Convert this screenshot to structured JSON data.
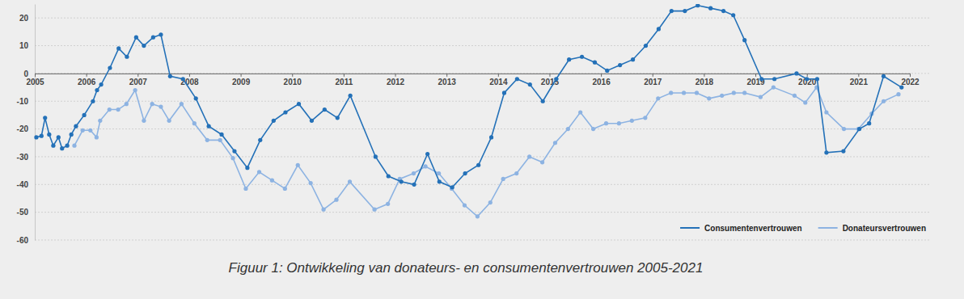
{
  "chart_data": {
    "type": "line",
    "title": "Figuur 1: Ontwikkeling van donateurs- en consumentenvertrouwen 2005-2021",
    "xlim": [
      2005,
      2022
    ],
    "xticks": [
      2005,
      2006,
      2007,
      2008,
      2009,
      2010,
      2011,
      2012,
      2013,
      2014,
      2015,
      2016,
      2017,
      2018,
      2019,
      2020,
      2021,
      2022
    ],
    "ylim": [
      -60,
      25
    ],
    "yticks": [
      20,
      10,
      0,
      -10,
      -20,
      -30,
      -40,
      -50,
      -60
    ],
    "grid": true,
    "legend": "lower right",
    "marker": "circle",
    "series": [
      {
        "name": "Consumentenvertrouwen",
        "color": "#2471b8",
        "x": [
          2005.03,
          2005.13,
          2005.2,
          2005.28,
          2005.36,
          2005.46,
          2005.53,
          2005.63,
          2005.71,
          2005.8,
          2005.96,
          2006.13,
          2006.21,
          2006.29,
          2006.46,
          2006.63,
          2006.79,
          2006.97,
          2007.12,
          2007.3,
          2007.45,
          2007.63,
          2007.88,
          2008.13,
          2008.38,
          2008.63,
          2008.88,
          2009.13,
          2009.38,
          2009.64,
          2009.87,
          2010.13,
          2010.38,
          2010.63,
          2010.88,
          2011.13,
          2011.62,
          2011.87,
          2012.12,
          2012.37,
          2012.63,
          2012.86,
          2013.11,
          2013.36,
          2013.62,
          2013.87,
          2014.12,
          2014.37,
          2014.62,
          2014.87,
          2015.13,
          2015.38,
          2015.63,
          2015.88,
          2016.12,
          2016.37,
          2016.62,
          2016.87,
          2017.12,
          2017.37,
          2017.63,
          2017.88,
          2018.13,
          2018.38,
          2018.57,
          2018.79,
          2019.12,
          2019.37,
          2019.8,
          2020.0,
          2020.2,
          2020.38,
          2020.71,
          2021.02,
          2021.21,
          2021.49,
          2021.84
        ],
        "values": [
          -23,
          -22.5,
          -16,
          -22,
          -26,
          -23,
          -27,
          -26,
          -22,
          -19,
          -15,
          -10,
          -6,
          -4,
          2,
          9,
          6,
          13,
          10,
          13,
          14,
          -1,
          -2,
          -9,
          -19,
          -22,
          -28,
          -34,
          -24,
          -17,
          -14,
          -11,
          -17,
          -13,
          -16,
          -8,
          -30,
          -37,
          -39,
          -40,
          -29,
          -39,
          -41,
          -36,
          -33,
          -23,
          -7,
          -2,
          -4,
          -10,
          -2,
          5,
          6,
          4,
          1,
          3,
          5,
          10,
          16,
          22.5,
          22.5,
          24.5,
          23.5,
          22.5,
          21,
          12,
          -2,
          -2,
          0,
          -2,
          -2,
          -28.5,
          -28,
          -20,
          -18,
          -1,
          -5
        ]
      },
      {
        "name": "Donateursvertrouwen",
        "color": "#8db3e2",
        "x": [
          2005.77,
          2005.93,
          2006.08,
          2006.2,
          2006.27,
          2006.45,
          2006.62,
          2006.78,
          2006.95,
          2007.12,
          2007.28,
          2007.45,
          2007.61,
          2007.85,
          2008.1,
          2008.35,
          2008.6,
          2008.85,
          2009.1,
          2009.36,
          2009.61,
          2009.86,
          2010.11,
          2010.36,
          2010.61,
          2010.86,
          2011.12,
          2011.6,
          2011.86,
          2012.09,
          2012.36,
          2012.59,
          2012.85,
          2013.1,
          2013.35,
          2013.6,
          2013.85,
          2014.1,
          2014.36,
          2014.61,
          2014.86,
          2015.11,
          2015.36,
          2015.6,
          2015.85,
          2016.1,
          2016.35,
          2016.6,
          2016.86,
          2017.11,
          2017.36,
          2017.61,
          2017.86,
          2018.1,
          2018.35,
          2018.58,
          2018.79,
          2019.1,
          2019.35,
          2019.76,
          2019.97,
          2020.19,
          2020.38,
          2020.72,
          2021.0,
          2021.26,
          2021.49,
          2021.78
        ],
        "values": [
          -26,
          -20.5,
          -20.5,
          -23,
          -17,
          -13,
          -13,
          -11,
          -6,
          -17,
          -11,
          -12,
          -17,
          -11,
          -18,
          -24,
          -24,
          -30.5,
          -41.5,
          -35.5,
          -38.5,
          -41.5,
          -33,
          -39.5,
          -49,
          -45.5,
          -39,
          -49,
          -47,
          -38,
          -36,
          -33.5,
          -36,
          -41.5,
          -47.5,
          -51.5,
          -46.5,
          -38,
          -36,
          -30,
          -32,
          -25,
          -20,
          -14,
          -20,
          -18,
          -18,
          -17,
          -16,
          -9,
          -7,
          -7,
          -7,
          -9,
          -8,
          -7,
          -7,
          -8.5,
          -5,
          -8,
          -10.5,
          -5,
          -14,
          -20,
          -20,
          -14.5,
          -10,
          -7.5
        ]
      }
    ]
  }
}
